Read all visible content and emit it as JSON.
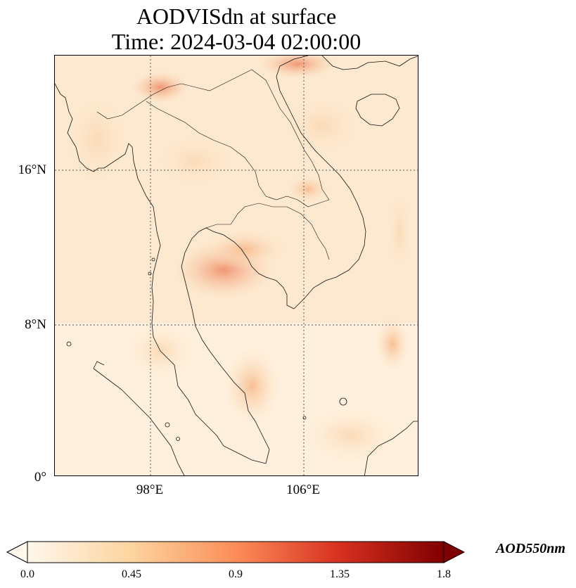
{
  "title": {
    "line1": "AODVISdn at surface",
    "line2": "Time: 2024-03-04 02:00:00"
  },
  "map": {
    "lat_labels": [
      "16°N",
      "8°N",
      "0°"
    ],
    "lon_labels": [
      "98°E",
      "106°E"
    ],
    "gridlines": "dotted",
    "coastlines": true,
    "colormap": "OrRd"
  },
  "colorbar": {
    "label": "AOD550nm",
    "ticks": [
      "0.0",
      "0.45",
      "0.9",
      "1.35",
      "1.8"
    ],
    "min": 0.0,
    "max": 1.8,
    "extend": "both",
    "colors": [
      "#fff7ec",
      "#fdd49e",
      "#fc8d59",
      "#d7301f",
      "#7f0000"
    ]
  }
}
